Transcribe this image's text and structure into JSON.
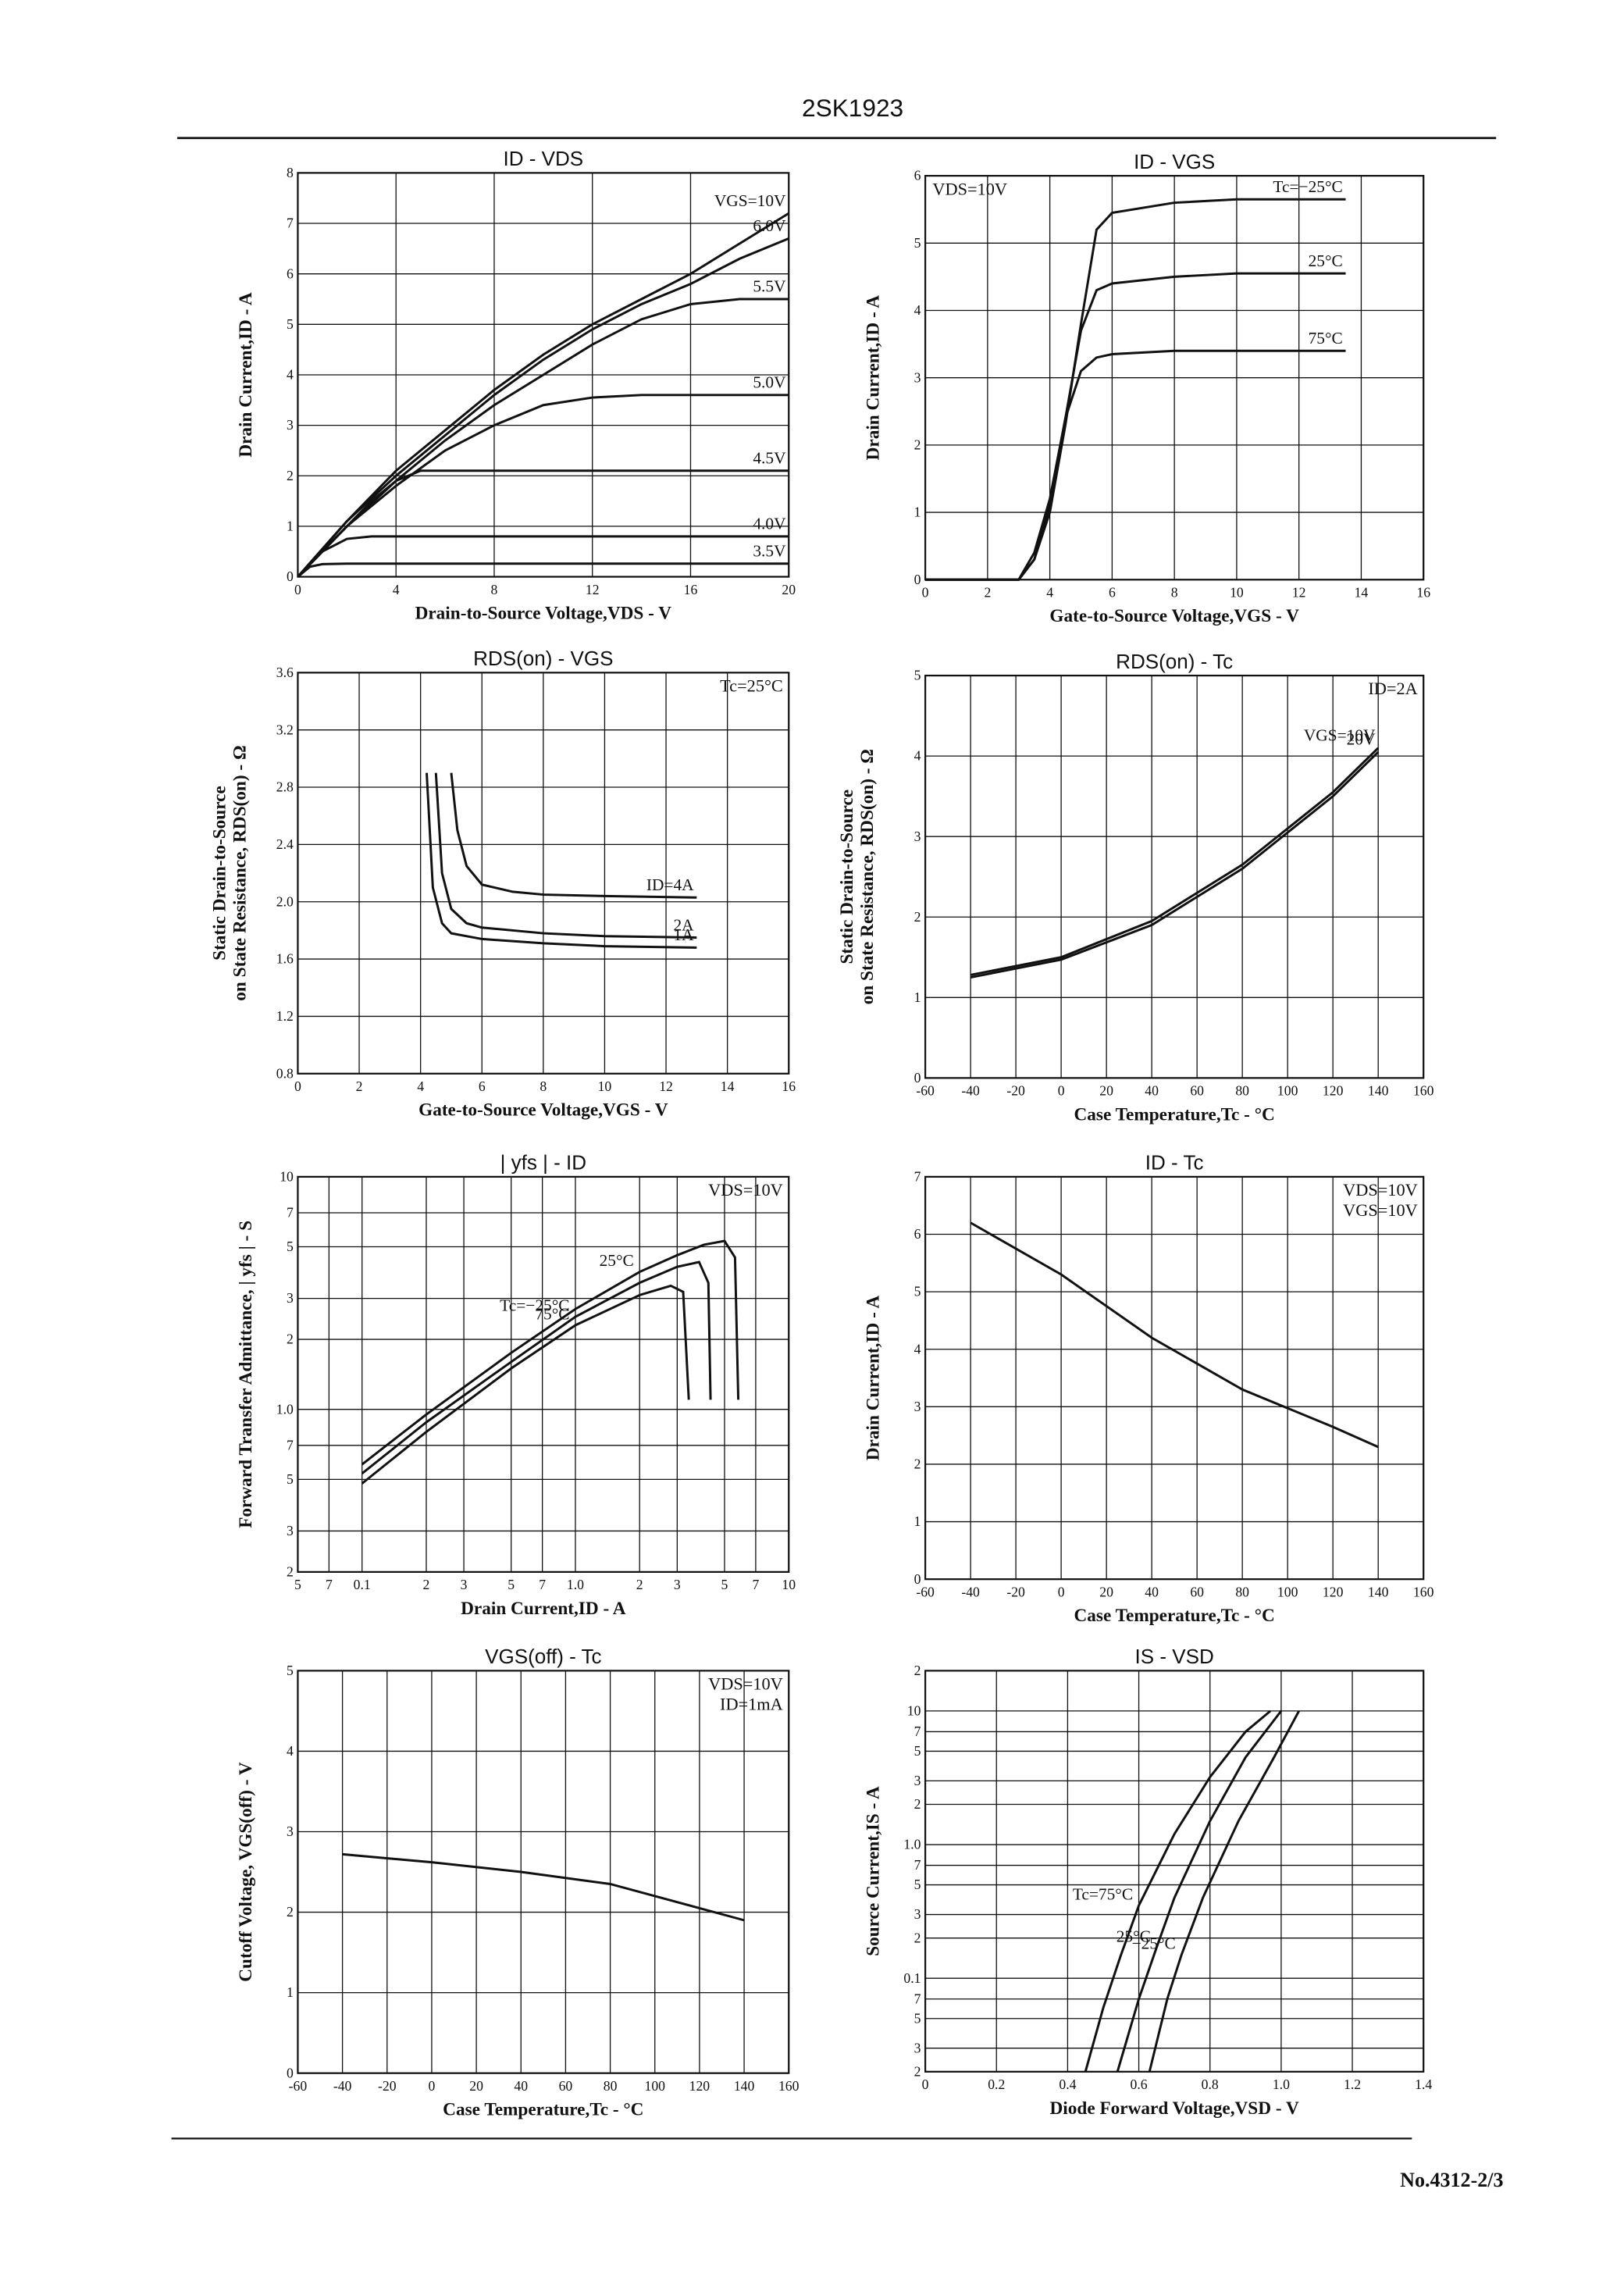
{
  "header": {
    "title": "2SK1923"
  },
  "footer": "No.4312-2/3",
  "chart_data": [
    {
      "type": "line",
      "title": "ID - VDS",
      "xlabel": "Drain-to-Source Voltage,VDS - V",
      "ylabel": "Drain Current,ID - A",
      "xlim": [
        0,
        20
      ],
      "ylim": [
        0,
        8
      ],
      "xticks": [
        0,
        4,
        8,
        12,
        16,
        20
      ],
      "yticks": [
        0,
        1,
        2,
        3,
        4,
        5,
        6,
        7,
        8
      ],
      "grid": true,
      "series": [
        {
          "name": "VGS=10V",
          "color": "#111111",
          "x": [
            0,
            2,
            4,
            6,
            8,
            10,
            12,
            14,
            16,
            18,
            20
          ],
          "values": [
            0,
            1.1,
            2.1,
            2.9,
            3.7,
            4.4,
            5.0,
            5.5,
            6.0,
            6.6,
            7.2
          ]
        },
        {
          "name": "6.0V",
          "color": "#111111",
          "x": [
            0,
            2,
            4,
            6,
            8,
            10,
            12,
            14,
            16,
            18,
            20
          ],
          "values": [
            0,
            1.1,
            2.0,
            2.8,
            3.6,
            4.3,
            4.9,
            5.4,
            5.8,
            6.3,
            6.7
          ]
        },
        {
          "name": "5.5V",
          "color": "#111111",
          "x": [
            0,
            2,
            4,
            6,
            8,
            10,
            12,
            14,
            16,
            18,
            20
          ],
          "values": [
            0,
            1.0,
            1.9,
            2.7,
            3.4,
            4.0,
            4.6,
            5.1,
            5.4,
            5.5,
            5.5
          ]
        },
        {
          "name": "5.0V",
          "color": "#111111",
          "x": [
            0,
            2,
            4,
            6,
            8,
            10,
            12,
            14,
            16,
            18,
            20
          ],
          "values": [
            0,
            1.0,
            1.8,
            2.5,
            3.0,
            3.4,
            3.55,
            3.6,
            3.6,
            3.6,
            3.6
          ]
        },
        {
          "name": "4.5V",
          "color": "#111111",
          "x": [
            0,
            2,
            3,
            4,
            5,
            6,
            10,
            20
          ],
          "values": [
            0,
            1.0,
            1.5,
            1.9,
            2.1,
            2.1,
            2.1,
            2.1
          ]
        },
        {
          "name": "4.0V",
          "color": "#111111",
          "x": [
            0,
            1,
            2,
            3,
            10,
            20
          ],
          "values": [
            0,
            0.5,
            0.75,
            0.8,
            0.8,
            0.8
          ]
        },
        {
          "name": "3.5V",
          "color": "#111111",
          "x": [
            0,
            0.5,
            1,
            2,
            10,
            20
          ],
          "values": [
            0,
            0.2,
            0.25,
            0.26,
            0.26,
            0.26
          ]
        }
      ]
    },
    {
      "type": "line",
      "title": "ID - VGS",
      "xlabel": "Gate-to-Source Voltage,VGS - V",
      "ylabel": "Drain Current,ID - A",
      "xlim": [
        0,
        16
      ],
      "ylim": [
        0,
        6
      ],
      "xticks": [
        0,
        2,
        4,
        6,
        8,
        10,
        12,
        14,
        16
      ],
      "yticks": [
        0,
        1,
        2,
        3,
        4,
        5,
        6
      ],
      "grid": true,
      "annotations": [
        "VDS=10V"
      ],
      "series": [
        {
          "name": "Tc=−25°C",
          "color": "#111111",
          "x": [
            0,
            3,
            3.5,
            4,
            4.5,
            5,
            5.5,
            6,
            8,
            10,
            13.5
          ],
          "values": [
            0,
            0,
            0.3,
            1,
            2.3,
            3.8,
            5.2,
            5.45,
            5.6,
            5.65,
            5.65
          ]
        },
        {
          "name": "25°C",
          "color": "#111111",
          "x": [
            0,
            3,
            3.5,
            4,
            4.5,
            5,
            5.5,
            6,
            8,
            10,
            13.5
          ],
          "values": [
            0,
            0,
            0.3,
            1.1,
            2.4,
            3.7,
            4.3,
            4.4,
            4.5,
            4.55,
            4.55
          ]
        },
        {
          "name": "75°C",
          "color": "#111111",
          "x": [
            0,
            3,
            3.5,
            4,
            4.5,
            5,
            5.5,
            6,
            8,
            10,
            13.5
          ],
          "values": [
            0,
            0,
            0.4,
            1.2,
            2.4,
            3.1,
            3.3,
            3.35,
            3.4,
            3.4,
            3.4
          ]
        }
      ]
    },
    {
      "type": "line",
      "title": "RDS(on) - VGS",
      "xlabel": "Gate-to-Source Voltage,VGS - V",
      "ylabel": [
        "Static Drain-to-Source",
        "on State Resistance, RDS(on) - Ω"
      ],
      "xlim": [
        0,
        16
      ],
      "ylim": [
        0.8,
        3.6
      ],
      "xticks": [
        0,
        2,
        4,
        6,
        8,
        10,
        12,
        14,
        16
      ],
      "yticks": [
        0.8,
        1.2,
        1.6,
        {
          "value": 2,
          "label": "2.0"
        },
        2.4,
        2.8,
        3.2,
        3.6
      ],
      "grid": true,
      "annotations": [
        "Tc=25°C"
      ],
      "series": [
        {
          "name": "ID=4A",
          "color": "#111111",
          "x": [
            5,
            5.2,
            5.5,
            6,
            7,
            8,
            10,
            13
          ],
          "values": [
            2.9,
            2.5,
            2.25,
            2.12,
            2.07,
            2.05,
            2.04,
            2.03
          ]
        },
        {
          "name": "2A",
          "color": "#111111",
          "x": [
            4.5,
            4.7,
            5,
            5.5,
            6,
            8,
            10,
            13
          ],
          "values": [
            2.9,
            2.2,
            1.95,
            1.85,
            1.82,
            1.78,
            1.76,
            1.75
          ]
        },
        {
          "name": "1A",
          "color": "#111111",
          "x": [
            4.2,
            4.4,
            4.7,
            5,
            6,
            8,
            10,
            13
          ],
          "values": [
            2.9,
            2.1,
            1.85,
            1.78,
            1.74,
            1.71,
            1.69,
            1.68
          ]
        }
      ]
    },
    {
      "type": "line",
      "title": "RDS(on) - Tc",
      "xlabel": "Case Temperature,Tc - °C",
      "ylabel": [
        "Static Drain-to-Source",
        "on State Resistance, RDS(on) - Ω"
      ],
      "xlim": [
        -60,
        160
      ],
      "ylim": [
        0,
        5
      ],
      "xticks": [
        -60,
        -40,
        -20,
        0,
        20,
        40,
        60,
        80,
        100,
        120,
        140,
        160
      ],
      "yticks": [
        0,
        1,
        2,
        3,
        4,
        5
      ],
      "grid": true,
      "annotations": [
        "ID=2A"
      ],
      "series": [
        {
          "name": "VGS=10V",
          "color": "#111111",
          "x": [
            -40,
            0,
            40,
            80,
            120,
            140
          ],
          "values": [
            1.28,
            1.5,
            1.95,
            2.65,
            3.55,
            4.1
          ]
        },
        {
          "name": "20V",
          "color": "#111111",
          "x": [
            -40,
            0,
            40,
            80,
            120,
            140
          ],
          "values": [
            1.25,
            1.47,
            1.9,
            2.6,
            3.5,
            4.05
          ]
        }
      ]
    },
    {
      "type": "line",
      "title": "| yfs | - ID",
      "xlabel": "Drain Current,ID - A",
      "ylabel": "Forward Transfer Admittance, | yfs | - S",
      "xscale": "log",
      "yscale": "log",
      "xlim": [
        0.05,
        10
      ],
      "ylim": [
        0.2,
        10
      ],
      "xticks": [
        {
          "value": 0.05,
          "label": "5"
        },
        {
          "value": 0.07,
          "label": "7"
        },
        0.1,
        {
          "value": 0.2,
          "label": "2"
        },
        {
          "value": 0.3,
          "label": "3"
        },
        {
          "value": 0.5,
          "label": "5"
        },
        {
          "value": 0.7,
          "label": "7"
        },
        {
          "value": 1,
          "label": "1.0"
        },
        2,
        3,
        5,
        7,
        10
      ],
      "yticks": [
        {
          "value": 0.2,
          "label": "2"
        },
        {
          "value": 0.3,
          "label": "3"
        },
        {
          "value": 0.5,
          "label": "5"
        },
        {
          "value": 0.7,
          "label": "7"
        },
        {
          "value": 1,
          "label": "1.0"
        },
        2,
        3,
        5,
        7,
        10
      ],
      "grid": true,
      "annotations": [
        "VDS=10V"
      ],
      "series": [
        {
          "name": "25°C",
          "color": "#111111",
          "x": [
            0.1,
            0.2,
            0.5,
            1,
            2,
            3,
            4,
            5,
            5.6,
            5.8
          ],
          "values": [
            0.58,
            0.95,
            1.75,
            2.7,
            3.9,
            4.6,
            5.1,
            5.3,
            4.5,
            1.1
          ]
        },
        {
          "name": "Tc=−25°C",
          "color": "#111111",
          "x": [
            0.1,
            0.2,
            0.5,
            1,
            2,
            3,
            3.8,
            4.2,
            4.3
          ],
          "values": [
            0.53,
            0.88,
            1.6,
            2.5,
            3.5,
            4.1,
            4.3,
            3.5,
            1.1
          ]
        },
        {
          "name": "75°C",
          "color": "#111111",
          "x": [
            0.1,
            0.2,
            0.5,
            1,
            2,
            2.8,
            3.2,
            3.4
          ],
          "values": [
            0.48,
            0.8,
            1.5,
            2.3,
            3.1,
            3.4,
            3.2,
            1.1
          ]
        }
      ]
    },
    {
      "type": "line",
      "title": "ID - Tc",
      "xlabel": "Case Temperature,Tc - °C",
      "ylabel": "Drain Current,ID - A",
      "xlim": [
        -60,
        160
      ],
      "ylim": [
        0,
        7
      ],
      "xticks": [
        -60,
        -40,
        -20,
        0,
        20,
        40,
        60,
        80,
        100,
        120,
        140,
        160
      ],
      "yticks": [
        0,
        1,
        2,
        3,
        4,
        5,
        6,
        7
      ],
      "grid": true,
      "annotations": [
        "VDS=10V",
        "VGS=10V"
      ],
      "series": [
        {
          "color": "#111111",
          "x": [
            -40,
            0,
            40,
            80,
            120,
            140
          ],
          "values": [
            6.2,
            5.3,
            4.2,
            3.3,
            2.65,
            2.3
          ]
        }
      ]
    },
    {
      "type": "line",
      "title": "VGS(off) - Tc",
      "xlabel": "Case Temperature,Tc - °C",
      "ylabel": "Cutoff Voltage, VGS(off) - V",
      "xlim": [
        -60,
        160
      ],
      "ylim": [
        0,
        5
      ],
      "xticks": [
        -60,
        -40,
        -20,
        0,
        20,
        40,
        60,
        80,
        100,
        120,
        140,
        160
      ],
      "yticks": [
        0,
        1,
        2,
        3,
        4,
        5
      ],
      "grid": true,
      "annotations": [
        "VDS=10V",
        "ID=1mA"
      ],
      "series": [
        {
          "color": "#111111",
          "x": [
            -40,
            0,
            40,
            80,
            120,
            140
          ],
          "values": [
            2.72,
            2.62,
            2.5,
            2.35,
            2.05,
            1.9
          ]
        }
      ]
    },
    {
      "type": "line",
      "title": "IS - VSD",
      "xlabel": "Diode Forward Voltage,VSD - V",
      "ylabel": "Source Current,IS - A",
      "yscale": "log",
      "xlim": [
        0,
        1.4
      ],
      "ylim": [
        0.02,
        20
      ],
      "xticks": [
        0,
        0.2,
        0.4,
        0.6,
        0.8,
        {
          "value": 1,
          "label": "1.0"
        },
        1.2,
        1.4
      ],
      "yticks": [
        {
          "value": 0.02,
          "label": "2"
        },
        {
          "value": 0.03,
          "label": "3"
        },
        {
          "value": 0.05,
          "label": "5"
        },
        {
          "value": 0.07,
          "label": "7"
        },
        0.1,
        {
          "value": 0.2,
          "label": "2"
        },
        {
          "value": 0.3,
          "label": "3"
        },
        {
          "value": 0.5,
          "label": "5"
        },
        {
          "value": 0.7,
          "label": "7"
        },
        {
          "value": 1,
          "label": "1.0"
        },
        2,
        3,
        5,
        7,
        10,
        {
          "value": 20,
          "label": "2"
        }
      ],
      "grid": true,
      "series": [
        {
          "name": "Tc=75°C",
          "color": "#111111",
          "x": [
            0.45,
            0.5,
            0.55,
            0.6,
            0.7,
            0.8,
            0.9,
            0.97
          ],
          "values": [
            0.02,
            0.06,
            0.15,
            0.35,
            1.2,
            3.2,
            7,
            10
          ]
        },
        {
          "name": "25°C",
          "color": "#111111",
          "x": [
            0.54,
            0.6,
            0.65,
            0.7,
            0.8,
            0.9,
            1.0
          ],
          "values": [
            0.02,
            0.07,
            0.17,
            0.4,
            1.5,
            4.5,
            10
          ]
        },
        {
          "name": "−25°C",
          "color": "#111111",
          "x": [
            0.63,
            0.68,
            0.72,
            0.78,
            0.88,
            0.98,
            1.05
          ],
          "values": [
            0.02,
            0.07,
            0.15,
            0.4,
            1.5,
            4.5,
            10
          ]
        }
      ]
    }
  ]
}
